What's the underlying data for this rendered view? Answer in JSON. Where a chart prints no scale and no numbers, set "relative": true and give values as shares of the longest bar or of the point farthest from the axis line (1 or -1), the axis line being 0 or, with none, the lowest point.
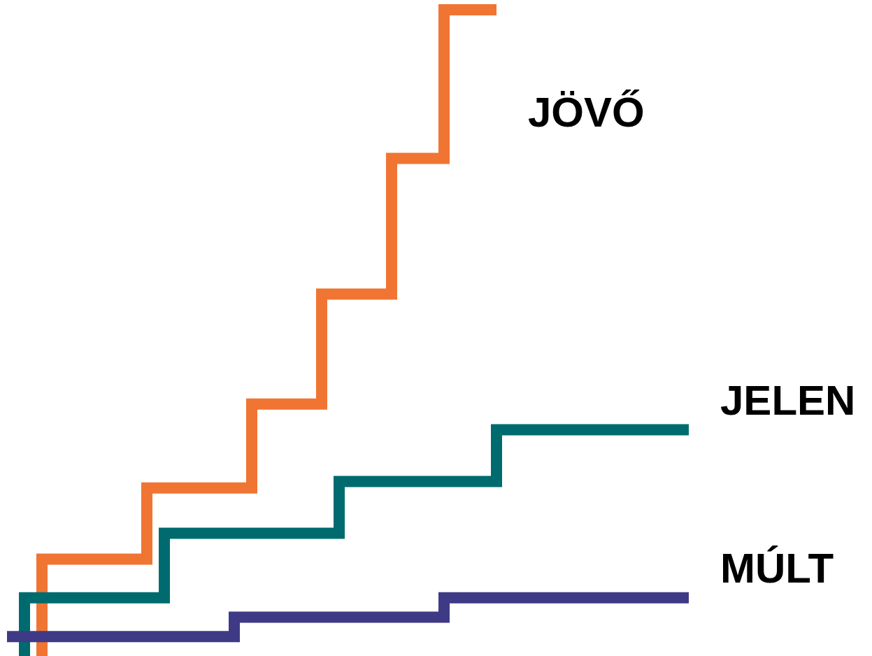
{
  "chart_data": {
    "type": "step",
    "relative": true,
    "marker": "none",
    "tick_labels": false,
    "categories": [
      null,
      null,
      null,
      null,
      null,
      null,
      null,
      null,
      null,
      null,
      null,
      null,
      null,
      null,
      null,
      null,
      null,
      null,
      null,
      null,
      null,
      null,
      null,
      null,
      null,
      null,
      null,
      null,
      null,
      null,
      null,
      null,
      null,
      null,
      null,
      null,
      null,
      null,
      null,
      null
    ],
    "series": [
      {
        "name": "MÚLT",
        "color": "#3f3a85",
        "values": [
          0.03,
          0.03,
          0.03,
          0.03,
          0.03,
          0.03,
          0.03,
          0.03,
          0.03,
          0.03,
          0.03,
          0.03,
          0.03,
          0.03,
          0.06,
          0.06,
          0.06,
          0.06,
          0.06,
          0.06,
          0.06,
          0.06,
          0.06,
          0.06,
          0.06,
          0.06,
          0.09,
          0.09,
          0.09,
          0.09,
          0.09,
          0.09,
          0.09,
          0.09,
          0.09,
          0.09,
          0.09,
          0.09,
          0.09,
          0.09
        ]
      },
      {
        "name": "JELEN",
        "color": "#006b6e",
        "values": [
          null,
          0,
          0.09,
          0.09,
          0.09,
          0.09,
          0.09,
          0.09,
          0.09,
          0.09,
          0.19,
          0.19,
          0.19,
          0.19,
          0.19,
          0.19,
          0.19,
          0.19,
          0.19,
          0.19,
          0.27,
          0.27,
          0.27,
          0.27,
          0.27,
          0.27,
          0.27,
          0.27,
          0.27,
          0.35,
          0.35,
          0.35,
          0.35,
          0.35,
          0.35,
          0.35,
          0.35,
          0.35,
          0.35,
          0.35
        ]
      },
      {
        "name": "JÖVŐ",
        "color": "#f07533",
        "values": [
          null,
          null,
          0,
          0.15,
          0.15,
          0.15,
          0.15,
          0.15,
          0.15,
          0.26,
          0.26,
          0.26,
          0.26,
          0.26,
          0.26,
          0.39,
          0.39,
          0.39,
          0.39,
          0.56,
          0.56,
          0.56,
          0.56,
          0.77,
          0.77,
          0.77,
          1,
          1,
          1,
          null,
          null,
          null,
          null,
          null,
          null,
          null,
          null,
          null,
          null,
          null
        ]
      }
    ]
  }
}
